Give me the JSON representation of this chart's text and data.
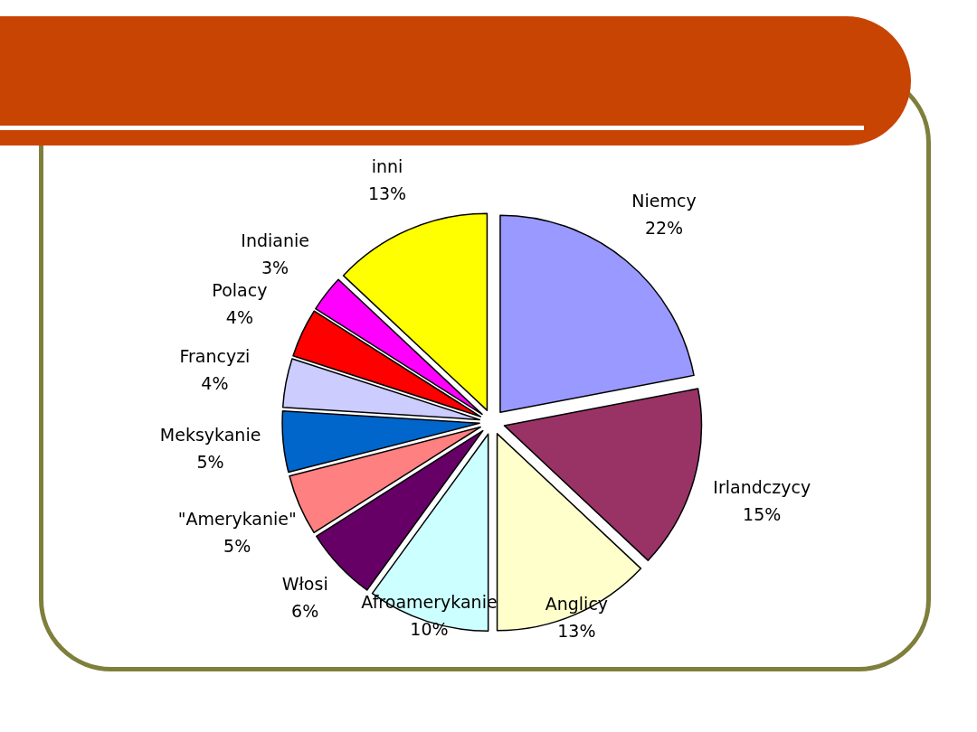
{
  "chart_data": {
    "type": "pie",
    "categories": [
      "Niemcy",
      "Irlandczycy",
      "Anglicy",
      "Afroamerykanie",
      "Włosi",
      "\"Amerykanie\"",
      "Meksykanie",
      "Francyzi",
      "Polacy",
      "Indianie",
      "inni"
    ],
    "values": [
      22,
      15,
      13,
      10,
      6,
      5,
      5,
      4,
      4,
      3,
      13
    ],
    "colors": [
      "#9999ff",
      "#993366",
      "#ffffcc",
      "#ccffff",
      "#660066",
      "#ff8080",
      "#0066cc",
      "#ccccff",
      "#ff0000",
      "#ff00ff",
      "#ffff00"
    ],
    "value_labels": [
      "22%",
      "15%",
      "13%",
      "10%",
      "6%",
      "5%",
      "5%",
      "4%",
      "4%",
      "3%",
      "13%"
    ]
  }
}
